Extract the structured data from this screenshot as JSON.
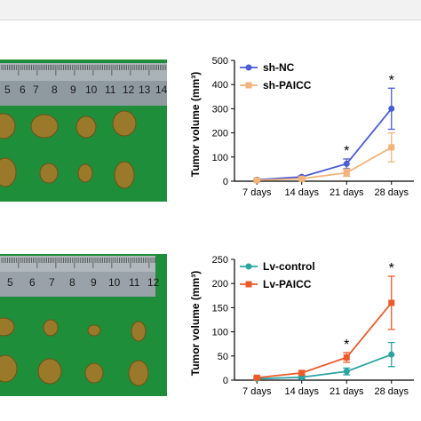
{
  "photo_top": {
    "ruler_numbers": [
      "5",
      "6",
      "7",
      "8",
      "9",
      "10",
      "11",
      "12",
      "13",
      "14"
    ]
  },
  "photo_bottom": {
    "ruler_numbers": [
      "5",
      "6",
      "7",
      "8",
      "9",
      "10",
      "11",
      "12"
    ]
  },
  "chart_data": [
    {
      "type": "line",
      "ylabel": "Tumor volume (mm³)",
      "xlabel": "",
      "categories": [
        "7 days",
        "14 days",
        "21 days",
        "28 days"
      ],
      "ylim": [
        0,
        500
      ],
      "yticks": [
        0,
        100,
        200,
        300,
        400,
        500
      ],
      "legend_position": "top-left",
      "series": [
        {
          "name": "sh-NC",
          "color": "#4a5cd6",
          "marker": "circle",
          "values": [
            6,
            18,
            72,
            300
          ],
          "errors": [
            3,
            5,
            20,
            85
          ]
        },
        {
          "name": "sh-PAICC",
          "color": "#f3b37a",
          "marker": "square",
          "values": [
            4,
            10,
            35,
            140
          ],
          "errors": [
            2,
            4,
            15,
            60
          ]
        }
      ],
      "significance": [
        {
          "category": "21 days",
          "label": "*"
        },
        {
          "category": "28 days",
          "label": "*"
        }
      ]
    },
    {
      "type": "line",
      "ylabel": "Tumor volume (mm³)",
      "xlabel": "",
      "categories": [
        "7 days",
        "14 days",
        "21 days",
        "28 days"
      ],
      "ylim": [
        0,
        250
      ],
      "yticks": [
        0,
        50,
        100,
        150,
        200,
        250
      ],
      "legend_position": "top-left",
      "series": [
        {
          "name": "Lv-control",
          "color": "#2aa3a3",
          "marker": "circle",
          "values": [
            3,
            6,
            18,
            53
          ],
          "errors": [
            2,
            3,
            7,
            25
          ]
        },
        {
          "name": "Lv-PAICC",
          "color": "#ef5a2a",
          "marker": "square",
          "values": [
            5,
            15,
            47,
            160
          ],
          "errors": [
            2,
            4,
            10,
            55
          ]
        }
      ],
      "significance": [
        {
          "category": "21 days",
          "label": "*"
        },
        {
          "category": "28 days",
          "label": "*"
        }
      ]
    }
  ]
}
